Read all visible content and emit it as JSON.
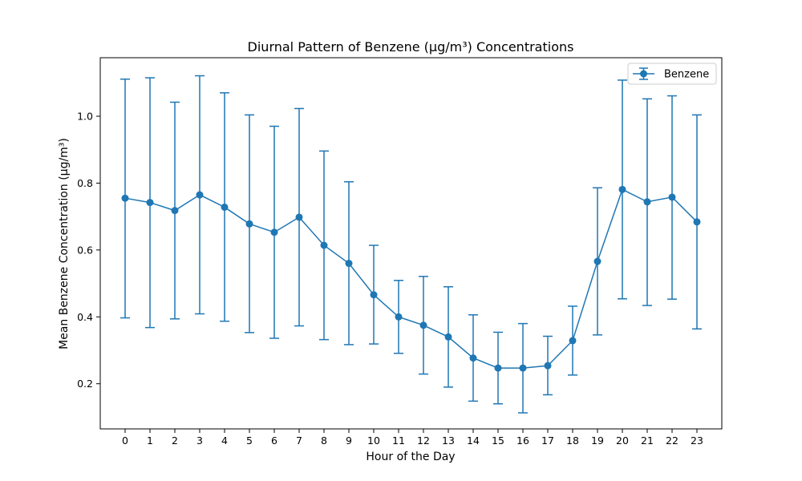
{
  "chart_data": {
    "type": "line",
    "title": "Diurnal Pattern of Benzene (µg/m³) Concentrations",
    "xlabel": "Hour of the Day",
    "ylabel": "Mean Benzene Concentration (µg/m³)",
    "x": [
      0,
      1,
      2,
      3,
      4,
      5,
      6,
      7,
      8,
      9,
      10,
      11,
      12,
      13,
      14,
      15,
      16,
      17,
      18,
      19,
      20,
      21,
      22,
      23
    ],
    "xlim": [
      -1,
      24
    ],
    "ylim": [
      0.065,
      1.175
    ],
    "yticks": [
      0.2,
      0.4,
      0.6,
      0.8,
      1.0
    ],
    "ytick_labels": [
      "0.2",
      "0.4",
      "0.6",
      "0.8",
      "1.0"
    ],
    "grid": false,
    "legend_position": "top-right",
    "series": [
      {
        "name": "Benzene",
        "color": "#1f77b4",
        "values": [
          0.755,
          0.742,
          0.718,
          0.765,
          0.728,
          0.678,
          0.653,
          0.698,
          0.614,
          0.56,
          0.466,
          0.4,
          0.375,
          0.34,
          0.277,
          0.247,
          0.247,
          0.254,
          0.329,
          0.566,
          0.781,
          0.744,
          0.758,
          0.684
        ],
        "err_low": [
          0.397,
          0.368,
          0.394,
          0.409,
          0.387,
          0.353,
          0.336,
          0.373,
          0.332,
          0.317,
          0.319,
          0.291,
          0.229,
          0.19,
          0.148,
          0.14,
          0.113,
          0.167,
          0.226,
          0.346,
          0.454,
          0.434,
          0.453,
          0.364
        ],
        "err_high": [
          1.111,
          1.115,
          1.042,
          1.121,
          1.07,
          1.004,
          0.97,
          1.023,
          0.896,
          0.804,
          0.614,
          0.509,
          0.521,
          0.49,
          0.406,
          0.354,
          0.38,
          0.342,
          0.432,
          0.786,
          1.108,
          1.052,
          1.061,
          1.004
        ]
      }
    ]
  }
}
